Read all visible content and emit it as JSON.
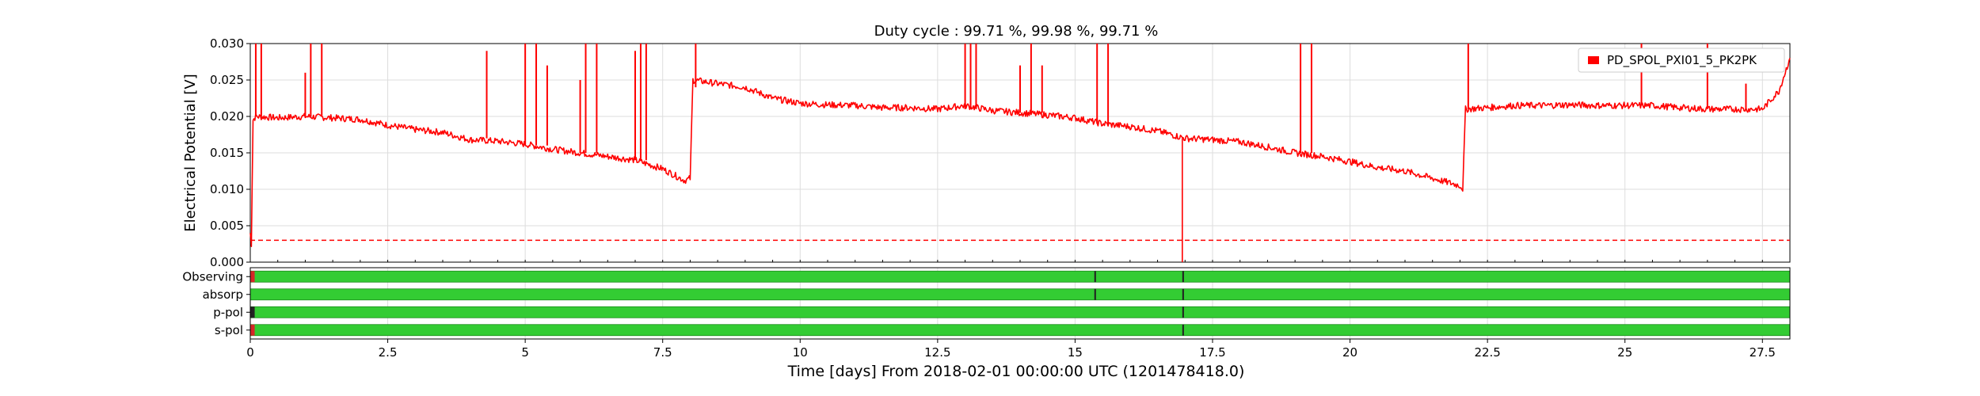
{
  "chart_data": {
    "type": "line",
    "title": "Duty cycle : 99.71 %, 99.98 %, 99.71 %",
    "xlabel": "Time [days] From 2018-02-01 00:00:00 UTC (1201478418.0)",
    "ylabel": "Electrical Potential [V]",
    "xlim": [
      0,
      28
    ],
    "ylim": [
      0,
      0.03
    ],
    "xticks": [
      "0",
      "2.5",
      "5",
      "7.5",
      "10",
      "12.5",
      "15",
      "17.5",
      "20",
      "22.5",
      "25",
      "27.5"
    ],
    "yticks": [
      "0.000",
      "0.005",
      "0.010",
      "0.015",
      "0.020",
      "0.025",
      "0.030"
    ],
    "grid": true,
    "legend_position": "top-right",
    "series": [
      {
        "name": "PD_SPOL_PXI01_5_PK2PK",
        "color": "#ff0000",
        "x": [
          0,
          0.02,
          0.05,
          0.1,
          0.5,
          1.0,
          1.5,
          2.0,
          2.5,
          3.0,
          3.5,
          4.0,
          4.5,
          5.0,
          5.5,
          6.0,
          6.5,
          7.0,
          7.5,
          7.9,
          8.0,
          8.05,
          8.5,
          9.0,
          9.5,
          10.0,
          10.5,
          11.0,
          11.5,
          12.0,
          12.5,
          13.0,
          13.5,
          14.0,
          14.5,
          15.0,
          15.5,
          16.0,
          16.5,
          17.0,
          17.5,
          18.0,
          18.5,
          19.0,
          19.5,
          20.0,
          20.5,
          21.0,
          21.5,
          22.0,
          22.05,
          22.1,
          22.5,
          23.0,
          23.5,
          24.0,
          24.5,
          25.0,
          25.5,
          26.0,
          26.5,
          27.0,
          27.5,
          27.8,
          28.0
        ],
        "values": [
          0.004,
          0.0025,
          0.0195,
          0.02,
          0.0198,
          0.02,
          0.0198,
          0.0196,
          0.0188,
          0.0182,
          0.0178,
          0.0168,
          0.0166,
          0.0162,
          0.0155,
          0.015,
          0.0145,
          0.014,
          0.0128,
          0.0112,
          0.0115,
          0.025,
          0.0245,
          0.024,
          0.0225,
          0.0218,
          0.0216,
          0.0215,
          0.0212,
          0.0212,
          0.021,
          0.0215,
          0.0208,
          0.0205,
          0.0202,
          0.0198,
          0.019,
          0.0186,
          0.018,
          0.017,
          0.0168,
          0.0165,
          0.0158,
          0.015,
          0.0145,
          0.0138,
          0.013,
          0.0125,
          0.0115,
          0.0105,
          0.0101,
          0.021,
          0.0212,
          0.0215,
          0.0215,
          0.0216,
          0.0215,
          0.0215,
          0.0215,
          0.0212,
          0.021,
          0.021,
          0.021,
          0.0235,
          0.028
        ]
      }
    ],
    "spikes": [
      {
        "x": 0.1,
        "from": 0.02,
        "to": 0.03
      },
      {
        "x": 0.2,
        "from": 0.02,
        "to": 0.03
      },
      {
        "x": 1.0,
        "from": 0.02,
        "to": 0.026
      },
      {
        "x": 1.1,
        "from": 0.02,
        "to": 0.03
      },
      {
        "x": 1.3,
        "from": 0.02,
        "to": 0.03
      },
      {
        "x": 4.3,
        "from": 0.017,
        "to": 0.029
      },
      {
        "x": 5.0,
        "from": 0.016,
        "to": 0.03
      },
      {
        "x": 5.2,
        "from": 0.016,
        "to": 0.03
      },
      {
        "x": 5.4,
        "from": 0.016,
        "to": 0.027
      },
      {
        "x": 6.0,
        "from": 0.015,
        "to": 0.025
      },
      {
        "x": 6.1,
        "from": 0.015,
        "to": 0.03
      },
      {
        "x": 6.3,
        "from": 0.015,
        "to": 0.03
      },
      {
        "x": 7.0,
        "from": 0.014,
        "to": 0.029
      },
      {
        "x": 7.1,
        "from": 0.014,
        "to": 0.03
      },
      {
        "x": 7.2,
        "from": 0.014,
        "to": 0.03
      },
      {
        "x": 8.1,
        "from": 0.024,
        "to": 0.03
      },
      {
        "x": 13.0,
        "from": 0.021,
        "to": 0.03
      },
      {
        "x": 13.1,
        "from": 0.021,
        "to": 0.03
      },
      {
        "x": 13.2,
        "from": 0.021,
        "to": 0.03
      },
      {
        "x": 14.0,
        "from": 0.0205,
        "to": 0.027
      },
      {
        "x": 14.2,
        "from": 0.0205,
        "to": 0.03
      },
      {
        "x": 14.4,
        "from": 0.0205,
        "to": 0.027
      },
      {
        "x": 15.4,
        "from": 0.019,
        "to": 0.03
      },
      {
        "x": 15.6,
        "from": 0.019,
        "to": 0.03
      },
      {
        "x": 19.1,
        "from": 0.015,
        "to": 0.03
      },
      {
        "x": 19.3,
        "from": 0.015,
        "to": 0.03
      },
      {
        "x": 22.15,
        "from": 0.021,
        "to": 0.03
      },
      {
        "x": 25.3,
        "from": 0.0215,
        "to": 0.03
      },
      {
        "x": 26.5,
        "from": 0.021,
        "to": 0.03
      },
      {
        "x": 27.2,
        "from": 0.021,
        "to": 0.0245
      }
    ],
    "dips": [
      {
        "x": 16.95,
        "from": 0.017,
        "to": 0.0
      }
    ],
    "threshold": {
      "y": 0.003,
      "style": "dashed",
      "color": "#ff0000"
    },
    "segments": {
      "rows": [
        "Observing",
        "absorp",
        "p-pol",
        "s-pol"
      ],
      "active_color": "#33cc33",
      "inactive_color": "#d62728",
      "gap_color": "#222222",
      "gaps": [
        {
          "row": 0,
          "x": 0.0,
          "w": 0.08,
          "kind": "inactive"
        },
        {
          "row": 0,
          "x": 15.35,
          "w": 0.03,
          "kind": "gap"
        },
        {
          "row": 0,
          "x": 16.95,
          "w": 0.03,
          "kind": "gap"
        },
        {
          "row": 1,
          "x": 15.35,
          "w": 0.03,
          "kind": "gap"
        },
        {
          "row": 1,
          "x": 16.95,
          "w": 0.03,
          "kind": "gap"
        },
        {
          "row": 2,
          "x": 0.0,
          "w": 0.08,
          "kind": "gap"
        },
        {
          "row": 2,
          "x": 16.95,
          "w": 0.03,
          "kind": "gap"
        },
        {
          "row": 3,
          "x": 0.0,
          "w": 0.08,
          "kind": "inactive"
        },
        {
          "row": 3,
          "x": 16.95,
          "w": 0.03,
          "kind": "gap"
        }
      ]
    }
  }
}
